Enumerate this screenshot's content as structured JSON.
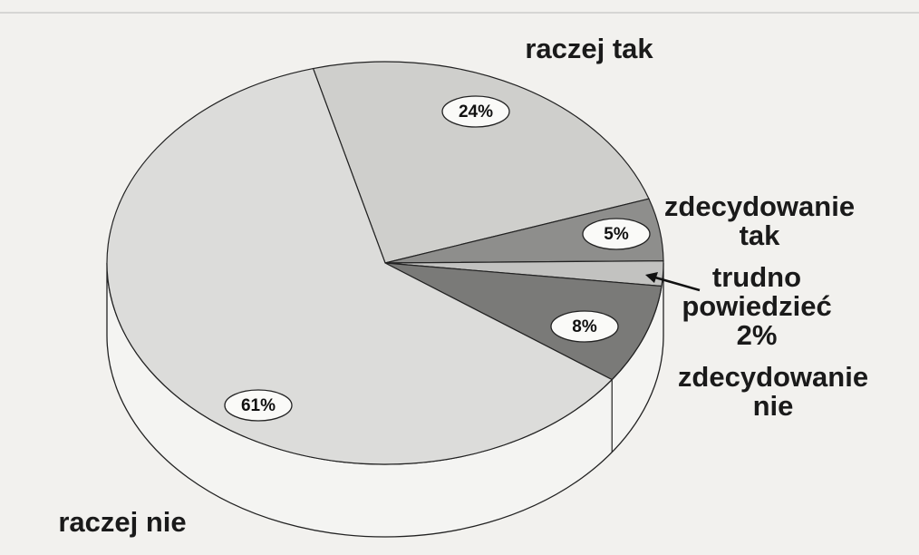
{
  "chart_data": {
    "type": "pie3d",
    "categories": [
      "raczej tak",
      "zdecydowanie tak",
      "trudno powiedzieć",
      "zdecydowanie nie",
      "raczej nie"
    ],
    "values": [
      24,
      5,
      2,
      8,
      61
    ],
    "value_labels": [
      "24%",
      "5%",
      "2%",
      "8%",
      "61%"
    ],
    "colors": [
      "#cfcfcc",
      "#8e8e8c",
      "#c2c2c0",
      "#7a7a78",
      "#dcdcda"
    ]
  }
}
